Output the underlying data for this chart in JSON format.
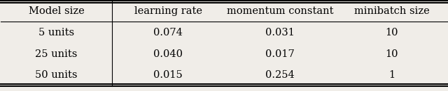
{
  "col_headers": [
    "Model size",
    "learning rate",
    "momentum constant",
    "minibatch size"
  ],
  "rows": [
    [
      "5 units",
      "0.074",
      "0.031",
      "10"
    ],
    [
      "25 units",
      "0.040",
      "0.017",
      "10"
    ],
    [
      "50 units",
      "0.015",
      "0.254",
      "1"
    ]
  ],
  "bg_color": "#f0ede8",
  "font_size": 10.5,
  "figwidth": 6.4,
  "figheight": 1.31,
  "dpi": 100
}
